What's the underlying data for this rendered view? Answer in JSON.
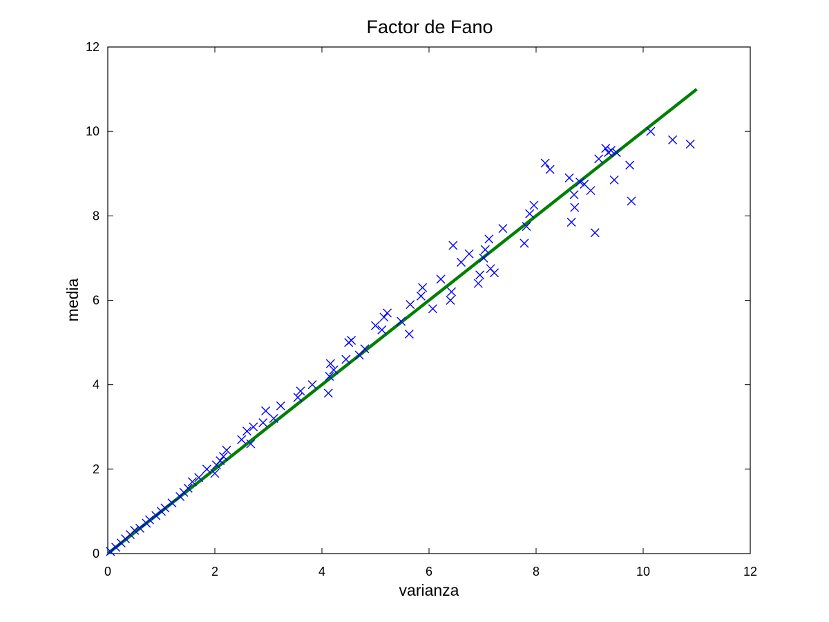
{
  "chart_data": {
    "type": "scatter",
    "title": "Factor de Fano",
    "xlabel": "varianza",
    "ylabel": "media",
    "xlim": [
      0,
      12
    ],
    "ylim": [
      0,
      12
    ],
    "xticks": [
      "0",
      "2",
      "4",
      "6",
      "8",
      "10",
      "12"
    ],
    "yticks": [
      "0",
      "2",
      "4",
      "6",
      "8",
      "10",
      "12"
    ],
    "grid": false,
    "colors": {
      "points": "#0000ff",
      "fit_line": "#008000",
      "axes": "#000000"
    },
    "fit_line": {
      "x": [
        0,
        11
      ],
      "y": [
        0,
        11
      ]
    },
    "series": [
      {
        "marker": "x",
        "x": [
          0.05,
          0.15,
          0.25,
          0.33,
          0.42,
          0.5,
          0.6,
          0.72,
          0.78,
          0.9,
          1.0,
          1.07,
          1.2,
          1.35,
          1.42,
          1.5,
          1.58,
          1.7,
          1.85,
          2.0,
          2.03,
          2.1,
          2.16,
          2.22,
          2.5,
          2.6,
          2.67,
          2.72,
          2.9,
          2.95,
          3.1,
          3.23,
          3.55,
          3.6,
          3.82,
          4.12,
          4.14,
          4.16,
          4.22,
          4.45,
          4.5,
          4.55,
          4.7,
          4.8,
          5.0,
          5.12,
          5.16,
          5.22,
          5.48,
          5.63,
          5.65,
          5.85,
          5.88,
          6.07,
          6.22,
          6.4,
          6.42,
          6.45,
          6.6,
          6.75,
          6.92,
          6.95,
          7.02,
          7.05,
          7.12,
          7.15,
          7.22,
          7.38,
          7.78,
          7.82,
          7.88,
          7.96,
          8.17,
          8.26,
          8.62,
          8.66,
          8.71,
          8.72,
          8.82,
          8.9,
          9.02,
          9.1,
          9.17,
          9.3,
          9.35,
          9.4,
          9.46,
          9.5,
          9.75,
          9.78,
          10.14,
          10.55,
          10.88
        ],
        "y": [
          0.05,
          0.15,
          0.25,
          0.35,
          0.45,
          0.55,
          0.6,
          0.72,
          0.8,
          0.9,
          1.0,
          1.08,
          1.2,
          1.35,
          1.45,
          1.55,
          1.7,
          1.8,
          2.0,
          1.9,
          2.1,
          2.2,
          2.3,
          2.45,
          2.7,
          2.9,
          2.6,
          3.0,
          3.1,
          3.38,
          3.2,
          3.5,
          3.7,
          3.85,
          4.0,
          3.8,
          4.2,
          4.5,
          4.35,
          4.6,
          5.0,
          5.05,
          4.7,
          4.85,
          5.4,
          5.3,
          5.6,
          5.7,
          5.5,
          5.2,
          5.9,
          6.1,
          6.3,
          5.8,
          6.5,
          6.0,
          6.2,
          7.3,
          6.9,
          7.1,
          6.4,
          6.6,
          7.0,
          7.2,
          7.45,
          6.75,
          6.65,
          7.7,
          7.35,
          7.75,
          8.05,
          8.25,
          9.25,
          9.1,
          8.9,
          7.85,
          8.5,
          8.2,
          8.8,
          8.75,
          8.6,
          7.6,
          9.35,
          9.6,
          9.5,
          9.55,
          8.85,
          9.5,
          9.2,
          8.35,
          10.0,
          9.8,
          9.7
        ]
      }
    ]
  }
}
